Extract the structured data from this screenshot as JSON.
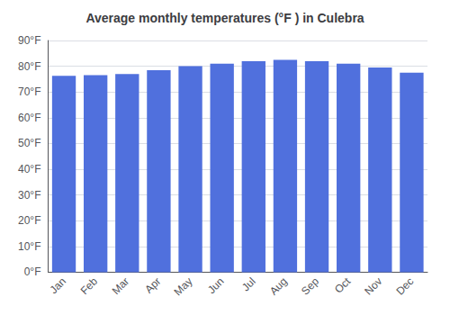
{
  "chart_data": {
    "type": "bar",
    "title": "Average monthly temperatures (°F ) in Culebra",
    "categories": [
      "Jan",
      "Feb",
      "Mar",
      "Apr",
      "May",
      "Jun",
      "Jul",
      "Aug",
      "Sep",
      "Oct",
      "Nov",
      "Dec"
    ],
    "values": [
      76.3,
      76.5,
      77.0,
      78.5,
      80.0,
      81.0,
      82.0,
      82.5,
      82.0,
      81.0,
      79.5,
      77.5
    ],
    "ylim": [
      0,
      90
    ],
    "yticks": [
      {
        "value": 0,
        "label": "0°F"
      },
      {
        "value": 10,
        "label": "10°F"
      },
      {
        "value": 20,
        "label": "20°F"
      },
      {
        "value": 30,
        "label": "30°F"
      },
      {
        "value": 40,
        "label": "40°F"
      },
      {
        "value": 50,
        "label": "50°F"
      },
      {
        "value": 60,
        "label": "60°F"
      },
      {
        "value": 70,
        "label": "70°F"
      },
      {
        "value": 80,
        "label": "80°F"
      },
      {
        "value": 90,
        "label": "90°F"
      }
    ],
    "grid": true
  }
}
